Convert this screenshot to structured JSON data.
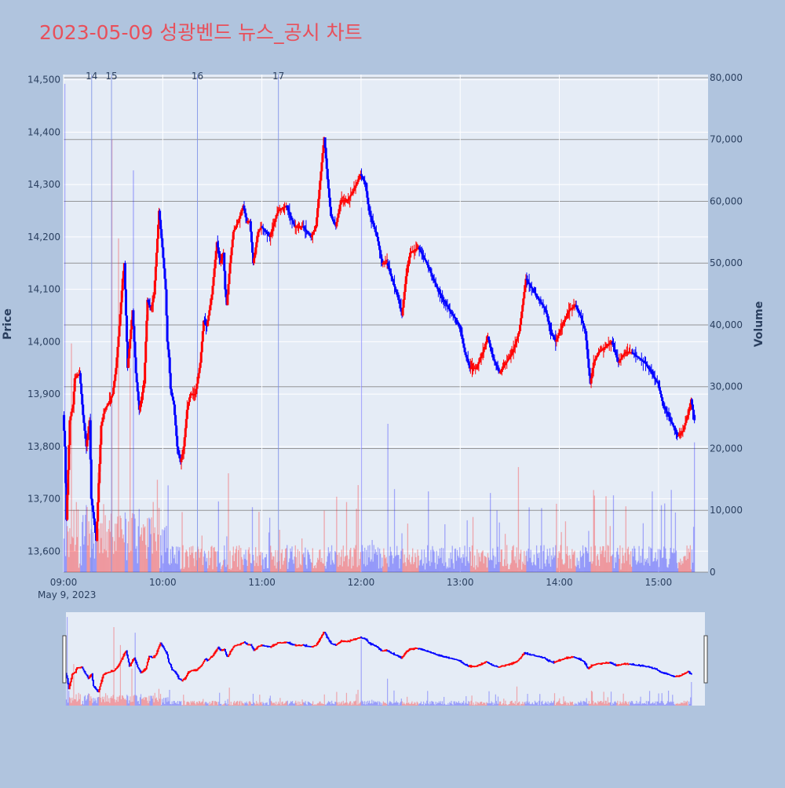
{
  "page": {
    "title": "2023-05-09 성광벤드 뉴스_공시 차트",
    "title_color": "#e8505b",
    "background": "#b0c4de",
    "plot_background": "#e5ecf6"
  },
  "chart_data": {
    "type": "candlestick",
    "title": "2023-05-09 성광벤드 뉴스_공시 차트",
    "ylabel": "Price",
    "y2label": "Volume",
    "date_label": "May 9, 2023",
    "x_range": [
      "09:00",
      "15:30"
    ],
    "x_ticks": [
      "09:00",
      "10:00",
      "11:00",
      "12:00",
      "13:00",
      "14:00",
      "15:00"
    ],
    "price_range": [
      13560,
      14510
    ],
    "price_ticks": [
      13600,
      13700,
      13800,
      13900,
      14000,
      14100,
      14200,
      14300,
      14400,
      14500
    ],
    "price_tick_labels": [
      "13,600",
      "13,700",
      "13,800",
      "13,900",
      "14,000",
      "14,100",
      "14,200",
      "14,300",
      "14,400",
      "14,500"
    ],
    "volume_range": [
      0,
      80500
    ],
    "volume_ticks": [
      0,
      10000,
      20000,
      30000,
      40000,
      50000,
      60000,
      70000,
      80000
    ],
    "volume_tick_labels": [
      "0",
      "10,000",
      "20,000",
      "30,000",
      "40,000",
      "50,000",
      "60,000",
      "70,000",
      "80,000"
    ],
    "up_color": "#ff0000",
    "down_color": "#0000ff",
    "grid": true,
    "news_markers": [
      {
        "label": "14",
        "time": "09:17"
      },
      {
        "label": "15",
        "time": "09:29"
      },
      {
        "label": "16",
        "time": "10:21"
      },
      {
        "label": "17",
        "time": "11:10"
      }
    ],
    "price_path": [
      [
        "09:00",
        13860
      ],
      [
        "09:01",
        13800
      ],
      [
        "09:02",
        13660
      ],
      [
        "09:04",
        13850
      ],
      [
        "09:06",
        13880
      ],
      [
        "09:07",
        13930
      ],
      [
        "09:10",
        13940
      ],
      [
        "09:12",
        13860
      ],
      [
        "09:14",
        13800
      ],
      [
        "09:16",
        13850
      ],
      [
        "09:17",
        13700
      ],
      [
        "09:19",
        13650
      ],
      [
        "09:20",
        13620
      ],
      [
        "09:23",
        13840
      ],
      [
        "09:25",
        13870
      ],
      [
        "09:27",
        13880
      ],
      [
        "09:30",
        13900
      ],
      [
        "09:32",
        13950
      ],
      [
        "09:34",
        14030
      ],
      [
        "09:36",
        14120
      ],
      [
        "09:37",
        14150
      ],
      [
        "09:39",
        13950
      ],
      [
        "09:42",
        14060
      ],
      [
        "09:44",
        13940
      ],
      [
        "09:46",
        13870
      ],
      [
        "09:49",
        13920
      ],
      [
        "09:51",
        14080
      ],
      [
        "09:53",
        14060
      ],
      [
        "09:55",
        14090
      ],
      [
        "09:58",
        14250
      ],
      [
        "10:00",
        14180
      ],
      [
        "10:02",
        14100
      ],
      [
        "10:03",
        14000
      ],
      [
        "10:04",
        13970
      ],
      [
        "10:05",
        13910
      ],
      [
        "10:07",
        13880
      ],
      [
        "10:09",
        13800
      ],
      [
        "10:11",
        13770
      ],
      [
        "10:13",
        13800
      ],
      [
        "10:15",
        13870
      ],
      [
        "10:17",
        13900
      ],
      [
        "10:20",
        13900
      ],
      [
        "10:23",
        13960
      ],
      [
        "10:25",
        14040
      ],
      [
        "10:27",
        14030
      ],
      [
        "10:30",
        14090
      ],
      [
        "10:33",
        14190
      ],
      [
        "10:35",
        14150
      ],
      [
        "10:37",
        14170
      ],
      [
        "10:38",
        14100
      ],
      [
        "10:39",
        14070
      ],
      [
        "10:41",
        14150
      ],
      [
        "10:43",
        14210
      ],
      [
        "10:46",
        14230
      ],
      [
        "10:49",
        14260
      ],
      [
        "10:51",
        14230
      ],
      [
        "10:53",
        14230
      ],
      [
        "10:55",
        14150
      ],
      [
        "10:58",
        14210
      ],
      [
        "11:00",
        14220
      ],
      [
        "11:05",
        14200
      ],
      [
        "11:10",
        14250
      ],
      [
        "11:15",
        14260
      ],
      [
        "11:20",
        14220
      ],
      [
        "11:25",
        14220
      ],
      [
        "11:30",
        14200
      ],
      [
        "11:33",
        14220
      ],
      [
        "11:35",
        14290
      ],
      [
        "11:37",
        14360
      ],
      [
        "11:38",
        14390
      ],
      [
        "11:40",
        14310
      ],
      [
        "11:42",
        14240
      ],
      [
        "11:45",
        14220
      ],
      [
        "11:48",
        14270
      ],
      [
        "11:52",
        14270
      ],
      [
        "11:56",
        14290
      ],
      [
        "12:00",
        14320
      ],
      [
        "12:03",
        14300
      ],
      [
        "12:05",
        14250
      ],
      [
        "12:08",
        14220
      ],
      [
        "12:10",
        14200
      ],
      [
        "12:13",
        14150
      ],
      [
        "12:16",
        14150
      ],
      [
        "12:20",
        14110
      ],
      [
        "12:23",
        14080
      ],
      [
        "12:25",
        14050
      ],
      [
        "12:28",
        14140
      ],
      [
        "12:30",
        14170
      ],
      [
        "12:35",
        14180
      ],
      [
        "12:40",
        14150
      ],
      [
        "12:44",
        14120
      ],
      [
        "12:48",
        14090
      ],
      [
        "12:52",
        14070
      ],
      [
        "12:56",
        14050
      ],
      [
        "13:00",
        14030
      ],
      [
        "13:03",
        13980
      ],
      [
        "13:06",
        13950
      ],
      [
        "13:10",
        13950
      ],
      [
        "13:14",
        13980
      ],
      [
        "13:17",
        14010
      ],
      [
        "13:20",
        13970
      ],
      [
        "13:24",
        13940
      ],
      [
        "13:28",
        13960
      ],
      [
        "13:32",
        13980
      ],
      [
        "13:36",
        14020
      ],
      [
        "13:38",
        14070
      ],
      [
        "13:40",
        14120
      ],
      [
        "13:44",
        14100
      ],
      [
        "13:48",
        14080
      ],
      [
        "13:52",
        14060
      ],
      [
        "13:55",
        14020
      ],
      [
        "13:58",
        14000
      ],
      [
        "14:02",
        14030
      ],
      [
        "14:06",
        14060
      ],
      [
        "14:10",
        14070
      ],
      [
        "14:13",
        14050
      ],
      [
        "14:16",
        14020
      ],
      [
        "14:18",
        13950
      ],
      [
        "14:19",
        13920
      ],
      [
        "14:21",
        13960
      ],
      [
        "14:24",
        13980
      ],
      [
        "14:28",
        13990
      ],
      [
        "14:32",
        14000
      ],
      [
        "14:36",
        13960
      ],
      [
        "14:40",
        13980
      ],
      [
        "14:44",
        13980
      ],
      [
        "14:48",
        13970
      ],
      [
        "14:52",
        13960
      ],
      [
        "14:56",
        13940
      ],
      [
        "15:00",
        13920
      ],
      [
        "15:03",
        13880
      ],
      [
        "15:06",
        13860
      ],
      [
        "15:09",
        13840
      ],
      [
        "15:12",
        13820
      ],
      [
        "15:15",
        13830
      ],
      [
        "15:18",
        13860
      ],
      [
        "15:20",
        13890
      ],
      [
        "15:22",
        13850
      ]
    ]
  }
}
